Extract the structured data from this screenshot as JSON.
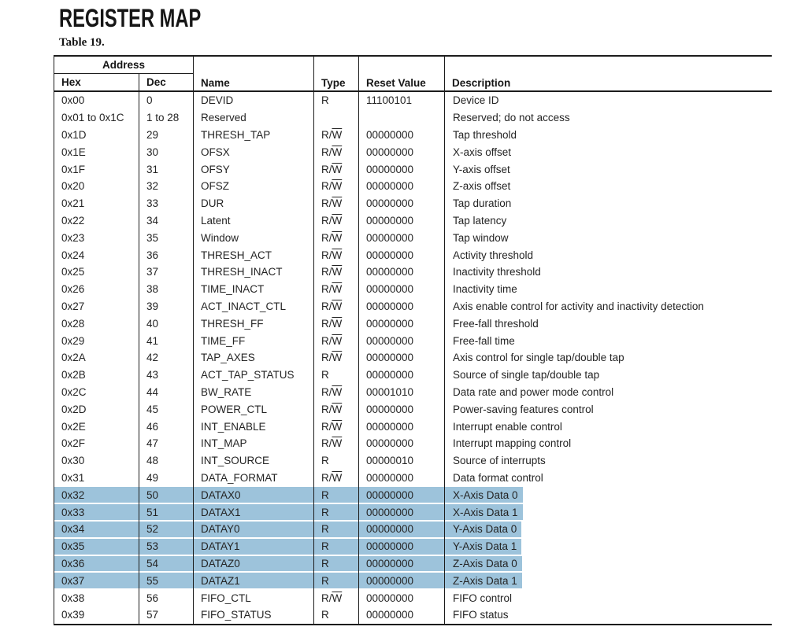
{
  "page": {
    "title": "REGISTER MAP",
    "table_caption": "Table 19."
  },
  "colors": {
    "highlight_blue": "#9dc3db",
    "line_black": "#1c1c1c",
    "text_dark": "#242424",
    "title_black": "#161616"
  },
  "table": {
    "headers": {
      "address": "Address",
      "hex": "Hex",
      "dec": "Dec",
      "name": "Name",
      "type": "Type",
      "reset_value": "Reset Value",
      "description": "Description"
    },
    "type_display": {
      "R": {
        "text": "R"
      },
      "RW": {
        "prefix": "R/",
        "overline": "W"
      }
    },
    "rows": [
      {
        "hex": "0x00",
        "dec": "0",
        "name": "DEVID",
        "type": "R",
        "reset": "11100101",
        "desc": "Device ID",
        "highlighted": false
      },
      {
        "hex": "0x01 to 0x1C",
        "dec": "1 to 28",
        "name": "Reserved",
        "type": "",
        "reset": "",
        "desc": "Reserved; do not access",
        "highlighted": false
      },
      {
        "hex": "0x1D",
        "dec": "29",
        "name": "THRESH_TAP",
        "type": "RW",
        "reset": "00000000",
        "desc": "Tap threshold",
        "highlighted": false
      },
      {
        "hex": "0x1E",
        "dec": "30",
        "name": "OFSX",
        "type": "RW",
        "reset": "00000000",
        "desc": "X-axis offset",
        "highlighted": false
      },
      {
        "hex": "0x1F",
        "dec": "31",
        "name": "OFSY",
        "type": "RW",
        "reset": "00000000",
        "desc": "Y-axis offset",
        "highlighted": false
      },
      {
        "hex": "0x20",
        "dec": "32",
        "name": "OFSZ",
        "type": "RW",
        "reset": "00000000",
        "desc": "Z-axis offset",
        "highlighted": false
      },
      {
        "hex": "0x21",
        "dec": "33",
        "name": "DUR",
        "type": "RW",
        "reset": "00000000",
        "desc": "Tap duration",
        "highlighted": false
      },
      {
        "hex": "0x22",
        "dec": "34",
        "name": "Latent",
        "type": "RW",
        "reset": "00000000",
        "desc": "Tap latency",
        "highlighted": false
      },
      {
        "hex": "0x23",
        "dec": "35",
        "name": "Window",
        "type": "RW",
        "reset": "00000000",
        "desc": "Tap window",
        "highlighted": false
      },
      {
        "hex": "0x24",
        "dec": "36",
        "name": "THRESH_ACT",
        "type": "RW",
        "reset": "00000000",
        "desc": "Activity threshold",
        "highlighted": false
      },
      {
        "hex": "0x25",
        "dec": "37",
        "name": "THRESH_INACT",
        "type": "RW",
        "reset": "00000000",
        "desc": "Inactivity threshold",
        "highlighted": false
      },
      {
        "hex": "0x26",
        "dec": "38",
        "name": "TIME_INACT",
        "type": "RW",
        "reset": "00000000",
        "desc": "Inactivity time",
        "highlighted": false
      },
      {
        "hex": "0x27",
        "dec": "39",
        "name": "ACT_INACT_CTL",
        "type": "RW",
        "reset": "00000000",
        "desc": "Axis enable control for activity and inactivity detection",
        "highlighted": false
      },
      {
        "hex": "0x28",
        "dec": "40",
        "name": "THRESH_FF",
        "type": "RW",
        "reset": "00000000",
        "desc": "Free-fall threshold",
        "highlighted": false
      },
      {
        "hex": "0x29",
        "dec": "41",
        "name": "TIME_FF",
        "type": "RW",
        "reset": "00000000",
        "desc": "Free-fall time",
        "highlighted": false
      },
      {
        "hex": "0x2A",
        "dec": "42",
        "name": "TAP_AXES",
        "type": "RW",
        "reset": "00000000",
        "desc": "Axis control for single tap/double tap",
        "highlighted": false
      },
      {
        "hex": "0x2B",
        "dec": "43",
        "name": "ACT_TAP_STATUS",
        "type": "R",
        "reset": "00000000",
        "desc": "Source of single tap/double tap",
        "highlighted": false
      },
      {
        "hex": "0x2C",
        "dec": "44",
        "name": "BW_RATE",
        "type": "RW",
        "reset": "00001010",
        "desc": "Data rate and power mode control",
        "highlighted": false
      },
      {
        "hex": "0x2D",
        "dec": "45",
        "name": "POWER_CTL",
        "type": "RW",
        "reset": "00000000",
        "desc": "Power-saving features control",
        "highlighted": false
      },
      {
        "hex": "0x2E",
        "dec": "46",
        "name": "INT_ENABLE",
        "type": "RW",
        "reset": "00000000",
        "desc": "Interrupt enable control",
        "highlighted": false
      },
      {
        "hex": "0x2F",
        "dec": "47",
        "name": "INT_MAP",
        "type": "RW",
        "reset": "00000000",
        "desc": "Interrupt mapping control",
        "highlighted": false
      },
      {
        "hex": "0x30",
        "dec": "48",
        "name": "INT_SOURCE",
        "type": "R",
        "reset": "00000010",
        "desc": "Source of interrupts",
        "highlighted": false
      },
      {
        "hex": "0x31",
        "dec": "49",
        "name": "DATA_FORMAT",
        "type": "RW",
        "reset": "00000000",
        "desc": "Data format control",
        "highlighted": false
      },
      {
        "hex": "0x32",
        "dec": "50",
        "name": "DATAX0",
        "type": "R",
        "reset": "00000000",
        "desc": "X-Axis Data 0",
        "highlighted": true
      },
      {
        "hex": "0x33",
        "dec": "51",
        "name": "DATAX1",
        "type": "R",
        "reset": "00000000",
        "desc": "X-Axis Data 1",
        "highlighted": true
      },
      {
        "hex": "0x34",
        "dec": "52",
        "name": "DATAY0",
        "type": "R",
        "reset": "00000000",
        "desc": "Y-Axis Data 0",
        "highlighted": true
      },
      {
        "hex": "0x35",
        "dec": "53",
        "name": "DATAY1",
        "type": "R",
        "reset": "00000000",
        "desc": "Y-Axis Data 1",
        "highlighted": true
      },
      {
        "hex": "0x36",
        "dec": "54",
        "name": "DATAZ0",
        "type": "R",
        "reset": "00000000",
        "desc": "Z-Axis Data 0",
        "highlighted": true
      },
      {
        "hex": "0x37",
        "dec": "55",
        "name": "DATAZ1",
        "type": "R",
        "reset": "00000000",
        "desc": "Z-Axis Data 1",
        "highlighted": true
      },
      {
        "hex": "0x38",
        "dec": "56",
        "name": "FIFO_CTL",
        "type": "RW",
        "reset": "00000000",
        "desc": "FIFO control",
        "highlighted": false
      },
      {
        "hex": "0x39",
        "dec": "57",
        "name": "FIFO_STATUS",
        "type": "R",
        "reset": "00000000",
        "desc": "FIFO status",
        "highlighted": false
      }
    ]
  }
}
